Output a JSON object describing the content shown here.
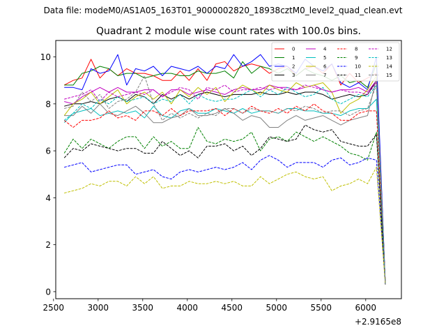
{
  "figure": {
    "suptitle": "Data file: modeM0/AS1A05_163T01_9000002820_18938cztM0_level2_quad_clean.evt",
    "title": "Quadrant 2 module wise count rates with 100.0s bins.",
    "offset_text": "+2.9165e8"
  },
  "chart_data": {
    "type": "line",
    "title": "Quadrant 2 module wise count rates with 100.0s bins.",
    "xlabel": "",
    "ylabel": "",
    "x_offset": 291650000,
    "xlim": [
      2525,
      6400
    ],
    "ylim": [
      -0.3,
      10.7
    ],
    "xticks": [
      2500,
      3000,
      3500,
      4000,
      4500,
      5000,
      5500,
      6000
    ],
    "yticks": [
      0,
      2,
      4,
      6,
      8,
      10
    ],
    "grid": false,
    "legend_position": "top-right",
    "legend_columns": 4,
    "x": [
      2620,
      2720,
      2820,
      2920,
      3020,
      3120,
      3220,
      3320,
      3420,
      3520,
      3620,
      3720,
      3820,
      3920,
      4020,
      4120,
      4220,
      4320,
      4420,
      4520,
      4620,
      4720,
      4820,
      4920,
      5020,
      5120,
      5220,
      5320,
      5420,
      5520,
      5620,
      5720,
      5820,
      5920,
      6020,
      6120,
      6220
    ],
    "series": [
      {
        "name": "0",
        "color": "#ff0000",
        "dash": "solid",
        "values": [
          8.8,
          9.0,
          9.1,
          9.9,
          9.1,
          9.5,
          9.2,
          9.5,
          9.3,
          9.3,
          9.2,
          9.0,
          9.0,
          9.4,
          9.0,
          9.5,
          9.0,
          9.7,
          9.8,
          9.4,
          9.6,
          9.7,
          9.6,
          9.3,
          9.5,
          9.6,
          9.2,
          9.5,
          9.6,
          9.3,
          9.7,
          8.8,
          9.3,
          8.9,
          9.1,
          9.3,
          0.35
        ]
      },
      {
        "name": "1",
        "color": "#008000",
        "dash": "solid",
        "values": [
          8.8,
          8.8,
          9.3,
          9.4,
          9.6,
          9.5,
          9.2,
          9.3,
          9.3,
          9.1,
          9.2,
          9.3,
          9.3,
          9.2,
          9.2,
          9.4,
          9.3,
          9.3,
          9.4,
          9.1,
          9.8,
          9.3,
          9.6,
          9.5,
          9.3,
          9.5,
          9.2,
          9.5,
          9.3,
          9.2,
          9.0,
          9.2,
          8.9,
          9.0,
          8.7,
          9.7,
          0.3
        ]
      },
      {
        "name": "2",
        "color": "#0000ff",
        "dash": "solid",
        "values": [
          8.7,
          8.7,
          8.6,
          9.5,
          9.3,
          9.4,
          10.1,
          8.8,
          9.5,
          9.4,
          9.6,
          9.2,
          9.6,
          9.5,
          9.4,
          9.6,
          9.3,
          9.6,
          9.5,
          10.1,
          9.6,
          9.8,
          10.1,
          9.6,
          9.7,
          9.6,
          9.3,
          9.9,
          9.6,
          9.4,
          9.7,
          8.9,
          8.7,
          8.9,
          8.6,
          10.0,
          0.3
        ]
      },
      {
        "name": "3",
        "color": "#000000",
        "dash": "solid",
        "values": [
          7.9,
          8.0,
          8.0,
          8.1,
          8.0,
          8.2,
          8.3,
          8.1,
          8.4,
          8.3,
          8.0,
          8.4,
          8.2,
          8.4,
          8.2,
          8.4,
          8.5,
          8.4,
          8.3,
          8.4,
          8.4,
          8.4,
          8.5,
          8.4,
          8.4,
          8.5,
          8.4,
          8.5,
          8.5,
          8.4,
          8.2,
          8.3,
          8.4,
          8.3,
          8.4,
          9.0,
          0.3
        ]
      },
      {
        "name": "4",
        "color": "#c000c0",
        "dash": "solid",
        "values": [
          8.1,
          8.0,
          8.3,
          8.5,
          8.7,
          8.5,
          8.7,
          8.5,
          8.5,
          8.6,
          8.6,
          8.3,
          8.6,
          8.6,
          8.4,
          8.5,
          8.6,
          8.5,
          8.4,
          8.6,
          8.7,
          8.6,
          8.6,
          8.8,
          8.7,
          8.7,
          8.6,
          8.7,
          8.8,
          8.6,
          8.5,
          8.6,
          8.6,
          8.7,
          8.5,
          9.0,
          0.3
        ]
      },
      {
        "name": "5",
        "color": "#00bfbf",
        "dash": "solid",
        "values": [
          7.2,
          7.6,
          7.7,
          7.8,
          7.5,
          7.6,
          7.7,
          7.6,
          7.7,
          7.4,
          7.9,
          7.5,
          7.4,
          7.7,
          7.8,
          7.6,
          7.6,
          7.8,
          7.7,
          7.6,
          7.8,
          7.6,
          7.7,
          7.7,
          7.6,
          7.8,
          7.8,
          7.7,
          7.7,
          7.6,
          7.6,
          7.5,
          7.7,
          7.8,
          7.8,
          8.2,
          0.3
        ]
      },
      {
        "name": "6",
        "color": "#bfbf00",
        "dash": "solid",
        "values": [
          7.5,
          8.0,
          8.2,
          8.5,
          8.0,
          8.3,
          8.6,
          8.0,
          8.3,
          8.5,
          8.2,
          8.5,
          8.0,
          8.6,
          8.3,
          8.7,
          8.4,
          8.7,
          8.1,
          8.5,
          8.8,
          8.6,
          8.4,
          8.8,
          8.6,
          8.5,
          8.9,
          8.7,
          8.8,
          8.9,
          8.5,
          7.6,
          8.0,
          8.2,
          8.6,
          9.2,
          0.3
        ]
      },
      {
        "name": "7",
        "color": "#808080",
        "dash": "solid",
        "values": [
          7.5,
          7.5,
          7.9,
          7.6,
          8.0,
          7.6,
          7.5,
          7.7,
          7.9,
          7.6,
          7.2,
          7.2,
          7.4,
          7.5,
          7.8,
          7.5,
          7.5,
          7.6,
          7.8,
          7.6,
          7.3,
          7.5,
          7.4,
          7.0,
          7.0,
          7.3,
          7.5,
          7.3,
          7.4,
          7.5,
          7.3,
          7.1,
          7.3,
          7.4,
          7.5,
          9.1,
          0.3
        ]
      },
      {
        "name": "8",
        "color": "#ff0000",
        "dash": "dashed",
        "values": [
          7.3,
          7.0,
          7.3,
          7.3,
          7.4,
          7.7,
          7.4,
          7.5,
          7.3,
          7.7,
          7.7,
          7.5,
          7.8,
          7.5,
          7.7,
          7.7,
          7.7,
          7.8,
          7.5,
          7.8,
          7.6,
          7.9,
          7.7,
          7.6,
          7.8,
          7.6,
          7.9,
          7.7,
          8.0,
          7.7,
          7.6,
          7.3,
          7.3,
          7.6,
          7.7,
          7.7,
          0.3
        ]
      },
      {
        "name": "9",
        "color": "#008000",
        "dash": "dashed",
        "values": [
          5.9,
          6.5,
          6.1,
          6.5,
          6.3,
          6.1,
          6.4,
          6.6,
          6.6,
          6.1,
          6.6,
          6.2,
          6.4,
          6.1,
          6.1,
          7.0,
          6.4,
          6.3,
          6.5,
          6.4,
          6.5,
          6.8,
          6.0,
          6.5,
          6.6,
          6.4,
          6.8,
          6.6,
          6.4,
          6.6,
          6.4,
          6.2,
          5.9,
          5.8,
          5.6,
          6.8,
          0.3
        ]
      },
      {
        "name": "10",
        "color": "#0000ff",
        "dash": "dashed",
        "values": [
          5.3,
          5.4,
          5.5,
          5.1,
          5.2,
          5.3,
          5.4,
          5.4,
          5.0,
          5.1,
          5.2,
          4.9,
          4.8,
          5.1,
          5.2,
          5.1,
          5.2,
          5.3,
          5.2,
          5.3,
          5.5,
          5.2,
          5.6,
          5.8,
          5.6,
          5.3,
          5.5,
          5.5,
          5.5,
          5.3,
          5.6,
          5.7,
          5.4,
          5.5,
          5.7,
          5.6,
          0.3
        ]
      },
      {
        "name": "11",
        "color": "#000000",
        "dash": "dashed",
        "values": [
          5.7,
          6.1,
          6.0,
          6.3,
          6.2,
          6.1,
          6.0,
          6.1,
          6.1,
          5.9,
          5.9,
          6.4,
          6.1,
          5.8,
          6.0,
          5.7,
          6.2,
          6.2,
          6.3,
          6.0,
          6.2,
          5.8,
          6.1,
          6.6,
          6.5,
          6.4,
          6.5,
          7.1,
          6.9,
          6.8,
          6.9,
          6.4,
          6.3,
          6.2,
          6.2,
          6.7,
          0.3
        ]
      },
      {
        "name": "12",
        "color": "#c000c0",
        "dash": "dashed",
        "values": [
          8.2,
          8.3,
          8.4,
          8.6,
          8.1,
          8.5,
          8.3,
          8.4,
          8.5,
          8.4,
          8.6,
          8.3,
          8.5,
          8.7,
          8.6,
          8.2,
          8.7,
          8.6,
          8.8,
          8.5,
          8.6,
          8.6,
          8.7,
          8.6,
          8.7,
          8.6,
          8.6,
          8.8,
          8.7,
          8.6,
          8.5,
          8.6,
          8.5,
          8.5,
          8.4,
          8.9,
          0.3
        ]
      },
      {
        "name": "13",
        "color": "#00bfbf",
        "dash": "dashed",
        "values": [
          7.3,
          7.6,
          8.0,
          7.8,
          8.2,
          8.0,
          8.3,
          8.1,
          8.2,
          8.3,
          8.0,
          8.2,
          8.1,
          8.4,
          8.0,
          8.4,
          8.2,
          8.1,
          8.2,
          8.2,
          8.4,
          8.6,
          8.3,
          8.6,
          8.4,
          8.7,
          8.5,
          8.3,
          8.4,
          8.7,
          8.2,
          8.0,
          8.2,
          8.4,
          8.3,
          8.8,
          0.3
        ]
      },
      {
        "name": "14",
        "color": "#bfbf00",
        "dash": "dashed",
        "values": [
          4.2,
          4.3,
          4.4,
          4.6,
          4.5,
          4.7,
          4.7,
          4.5,
          4.9,
          4.6,
          4.9,
          4.4,
          4.5,
          4.5,
          4.7,
          4.6,
          4.6,
          4.7,
          4.6,
          4.7,
          4.5,
          4.5,
          4.9,
          4.6,
          4.8,
          5.0,
          5.1,
          4.9,
          4.8,
          4.9,
          4.3,
          4.5,
          4.6,
          4.8,
          4.6,
          5.3,
          0.3
        ]
      },
      {
        "name": "15",
        "color": "#808080",
        "dash": "dashed",
        "values": [
          7.8,
          7.9,
          8.5,
          8.1,
          8.4,
          7.8,
          8.1,
          8.2,
          8.5,
          9.2,
          8.0,
          7.3,
          7.6,
          7.4,
          7.6,
          7.4,
          7.6,
          7.5,
          7.8,
          7.8,
          7.6,
          7.8,
          7.7,
          7.7,
          7.6,
          7.8,
          7.7,
          7.9,
          7.8,
          7.6,
          7.7,
          7.7,
          7.5,
          7.7,
          7.8,
          8.8,
          0.3
        ]
      }
    ]
  }
}
